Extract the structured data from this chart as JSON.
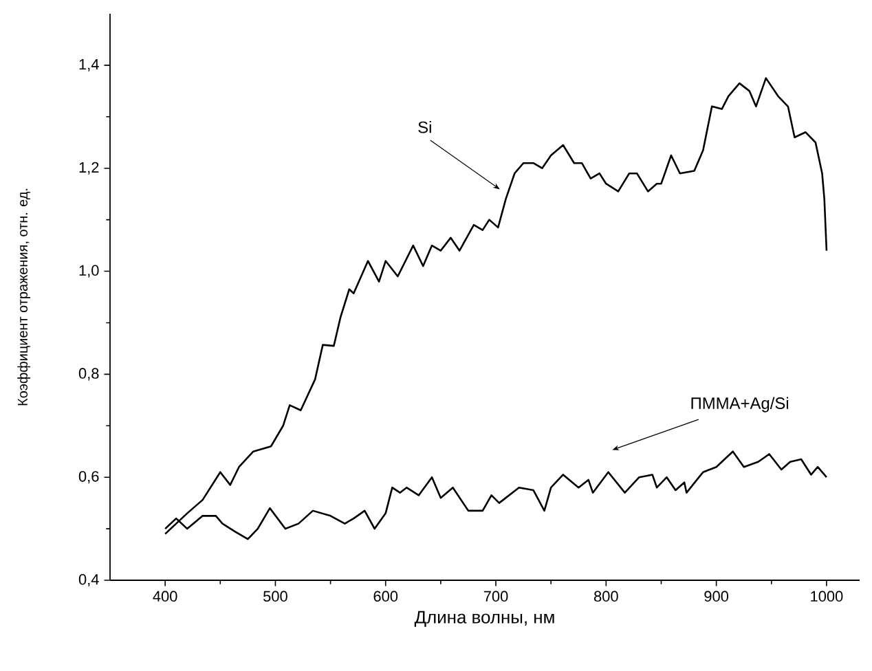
{
  "chart_data": {
    "type": "line",
    "xlabel": "Длина волны, нм",
    "ylabel": "Коэффициент отражения, отн. ед.",
    "xlim": [
      350,
      1030
    ],
    "ylim": [
      0.4,
      1.5
    ],
    "xticks": [
      400,
      500,
      600,
      700,
      800,
      900,
      1000
    ],
    "yticks": [
      {
        "value": 0.4,
        "label": "0,4"
      },
      {
        "value": 0.6,
        "label": "0,6"
      },
      {
        "value": 0.8,
        "label": "0,8"
      },
      {
        "value": 1.0,
        "label": "1,0"
      },
      {
        "value": 1.2,
        "label": "1,2"
      },
      {
        "value": 1.4,
        "label": "1,4"
      }
    ],
    "grid": false,
    "marker": "none",
    "line_style": "solid",
    "series": [
      {
        "color": "#000000",
        "x": [
          400,
          410,
          420,
          434,
          450,
          459,
          467,
          480,
          496,
          507,
          513,
          523,
          536,
          543,
          553,
          559,
          567,
          571,
          584,
          594,
          600,
          611,
          625,
          634,
          642,
          650,
          659,
          667,
          680,
          688,
          694,
          702,
          709,
          717,
          725,
          734,
          742,
          750,
          761,
          771,
          778,
          786,
          794,
          800,
          811,
          821,
          828,
          838,
          846,
          850,
          859,
          867,
          880,
          888,
          896,
          905,
          911,
          921,
          930,
          936,
          945,
          956,
          965,
          971,
          981,
          990,
          996,
          998,
          1000
        ],
        "values": [
          0.49,
          0.51,
          0.53,
          0.556,
          0.61,
          0.585,
          0.62,
          0.65,
          0.66,
          0.7,
          0.74,
          0.73,
          0.79,
          0.857,
          0.855,
          0.91,
          0.965,
          0.957,
          1.02,
          0.98,
          1.02,
          0.99,
          1.05,
          1.01,
          1.05,
          1.04,
          1.065,
          1.04,
          1.09,
          1.08,
          1.1,
          1.085,
          1.14,
          1.19,
          1.21,
          1.21,
          1.2,
          1.225,
          1.245,
          1.21,
          1.21,
          1.18,
          1.19,
          1.17,
          1.155,
          1.19,
          1.19,
          1.155,
          1.17,
          1.17,
          1.225,
          1.19,
          1.195,
          1.235,
          1.32,
          1.315,
          1.34,
          1.365,
          1.35,
          1.32,
          1.375,
          1.34,
          1.32,
          1.26,
          1.27,
          1.25,
          1.19,
          1.14,
          1.04
        ]
      },
      {
        "color": "#000000",
        "x": [
          400,
          410,
          420,
          434,
          446,
          452,
          463,
          475,
          484,
          495,
          509,
          521,
          534,
          550,
          563,
          571,
          581,
          590,
          600,
          606,
          613,
          619,
          630,
          642,
          650,
          661,
          675,
          688,
          696,
          703,
          721,
          734,
          744,
          750,
          761,
          775,
          784,
          788,
          802,
          817,
          830,
          842,
          846,
          855,
          863,
          871,
          873,
          888,
          900,
          915,
          925,
          938,
          948,
          959,
          967,
          977,
          986,
          992,
          1000
        ],
        "values": [
          0.5,
          0.52,
          0.5,
          0.525,
          0.525,
          0.51,
          0.495,
          0.48,
          0.5,
          0.54,
          0.5,
          0.51,
          0.535,
          0.525,
          0.51,
          0.52,
          0.535,
          0.5,
          0.53,
          0.58,
          0.57,
          0.58,
          0.565,
          0.6,
          0.56,
          0.58,
          0.535,
          0.535,
          0.565,
          0.55,
          0.58,
          0.575,
          0.535,
          0.58,
          0.605,
          0.58,
          0.595,
          0.57,
          0.61,
          0.57,
          0.6,
          0.605,
          0.58,
          0.6,
          0.575,
          0.59,
          0.57,
          0.61,
          0.62,
          0.65,
          0.62,
          0.63,
          0.645,
          0.615,
          0.63,
          0.635,
          0.605,
          0.62,
          0.6
        ]
      }
    ],
    "annotations": [
      "Si",
      "ПММА+Ag/Si"
    ]
  }
}
